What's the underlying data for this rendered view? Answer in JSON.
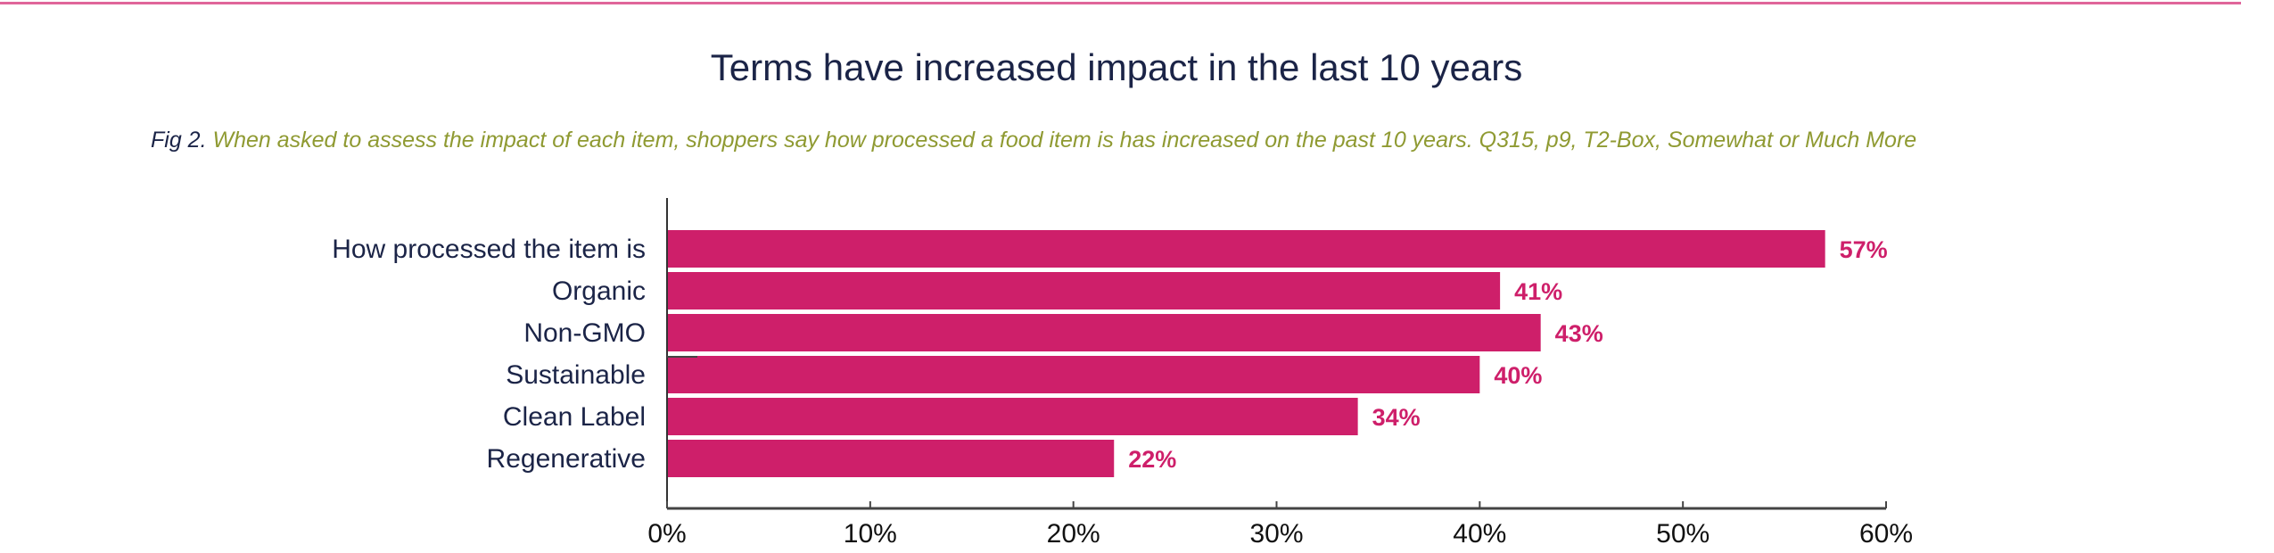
{
  "chart_data": {
    "type": "bar",
    "orientation": "horizontal",
    "title": "Terms have increased impact in the last 10 years",
    "caption_prefix": "Fig 2.",
    "caption": "When asked to assess the impact of each item, shoppers say how processed a food item is has increased on the past 10 years. Q315, p9, T2-Box, Somewhat or Much More",
    "categories": [
      "How processed the item is",
      "Organic",
      "Non-GMO",
      "Sustainable",
      "Clean Label",
      "Regenerative"
    ],
    "values": [
      57,
      41,
      43,
      40,
      34,
      22
    ],
    "value_labels": [
      "57%",
      "41%",
      "43%",
      "40%",
      "34%",
      "22%"
    ],
    "xlim": [
      0,
      60
    ],
    "xticks": [
      0,
      10,
      20,
      30,
      40,
      50,
      60
    ],
    "xtick_labels": [
      "0%",
      "10%",
      "20%",
      "30%",
      "40%",
      "50%",
      "60%"
    ],
    "xlabel": "",
    "ylabel": "",
    "grid": false,
    "colors": {
      "bar": "#ce1f6a",
      "label": "#1b2447",
      "caption": "#8f9a32",
      "accent_line": "#e0669a"
    }
  }
}
